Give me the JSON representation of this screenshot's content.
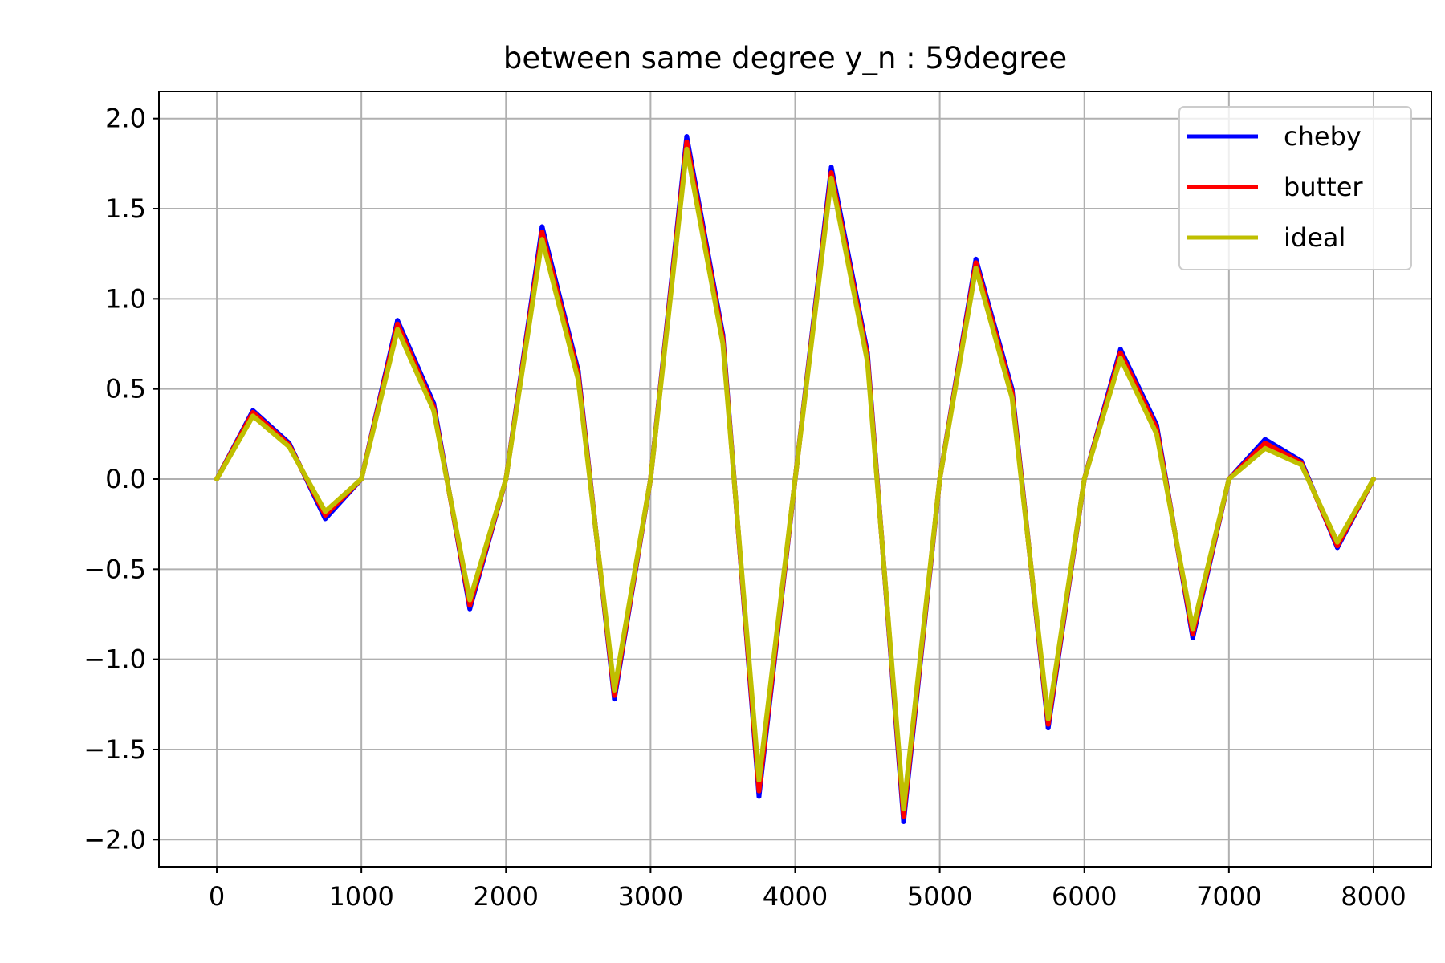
{
  "chart_data": {
    "type": "line",
    "title": "between same degree y_n : 59degree",
    "xlabel": "",
    "ylabel": "",
    "xlim": [
      -400,
      8400
    ],
    "ylim": [
      -2.15,
      2.15
    ],
    "x_ticks": [
      0,
      1000,
      2000,
      3000,
      4000,
      5000,
      6000,
      7000,
      8000
    ],
    "x_tick_labels": [
      "0",
      "1000",
      "2000",
      "3000",
      "4000",
      "5000",
      "6000",
      "7000",
      "8000"
    ],
    "y_ticks": [
      2.0,
      1.5,
      1.0,
      0.5,
      0.0,
      -0.5,
      -1.0,
      -1.5,
      -2.0
    ],
    "y_tick_labels": [
      "2.0",
      "1.5",
      "1.0",
      "0.5",
      "0.0",
      "−0.5",
      "−1.0",
      "−1.5",
      "−2.0"
    ],
    "grid": true,
    "legend_position": "top-right",
    "x": [
      0,
      250,
      500,
      750,
      1000,
      1250,
      1500,
      1750,
      2000,
      2250,
      2500,
      2750,
      3000,
      3250,
      3500,
      3750,
      4000,
      4250,
      4500,
      4750,
      5000,
      5250,
      5500,
      5750,
      6000,
      6250,
      6500,
      6750,
      7000,
      7250,
      7500,
      7750,
      8000
    ],
    "series": [
      {
        "name": "cheby",
        "color": "#0000ff",
        "values": [
          0.0,
          0.38,
          0.2,
          -0.22,
          0.0,
          0.88,
          0.42,
          -0.72,
          0.0,
          1.4,
          0.6,
          -1.22,
          0.0,
          1.9,
          0.8,
          -1.76,
          0.0,
          1.73,
          0.7,
          -1.9,
          0.0,
          1.22,
          0.5,
          -1.38,
          0.0,
          0.72,
          0.3,
          -0.88,
          0.0,
          0.22,
          0.1,
          -0.38,
          0.0
        ]
      },
      {
        "name": "butter",
        "color": "#ff0000",
        "values": [
          0.0,
          0.37,
          0.19,
          -0.2,
          0.0,
          0.86,
          0.4,
          -0.7,
          0.0,
          1.37,
          0.58,
          -1.2,
          0.0,
          1.87,
          0.78,
          -1.73,
          0.0,
          1.7,
          0.68,
          -1.87,
          0.0,
          1.2,
          0.48,
          -1.36,
          0.0,
          0.7,
          0.28,
          -0.86,
          0.0,
          0.2,
          0.09,
          -0.37,
          0.0
        ]
      },
      {
        "name": "ideal",
        "color": "#bfbf00",
        "values": [
          0.0,
          0.35,
          0.18,
          -0.18,
          0.0,
          0.83,
          0.38,
          -0.67,
          0.0,
          1.33,
          0.55,
          -1.17,
          0.0,
          1.83,
          0.75,
          -1.67,
          0.0,
          1.67,
          0.65,
          -1.83,
          0.0,
          1.17,
          0.45,
          -1.33,
          0.0,
          0.67,
          0.25,
          -0.83,
          0.0,
          0.17,
          0.08,
          -0.35,
          0.0
        ]
      }
    ]
  }
}
